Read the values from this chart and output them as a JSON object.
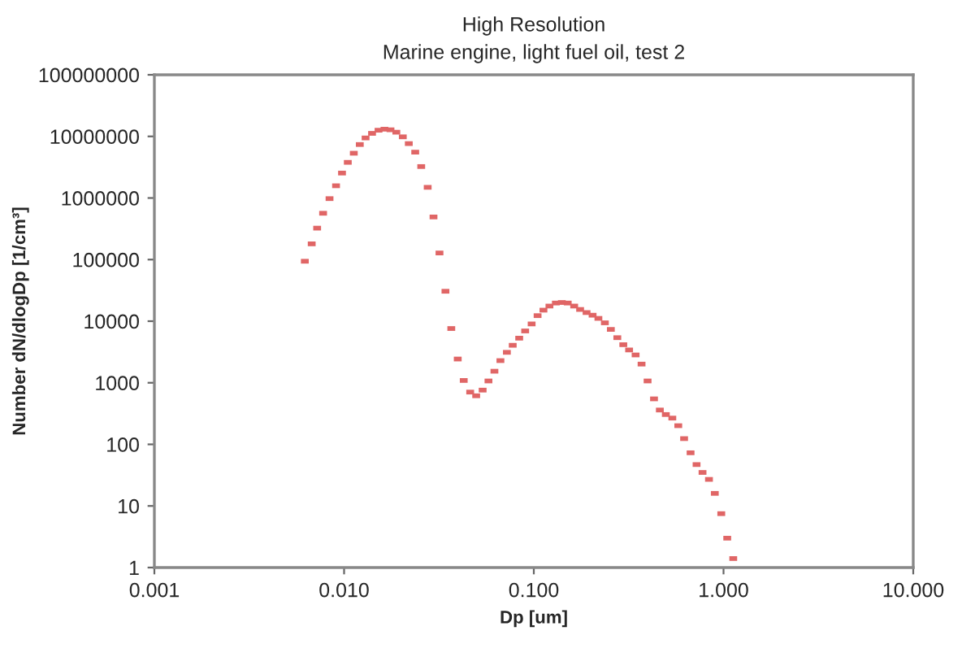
{
  "chart_data": {
    "type": "scatter",
    "title": "High Resolution",
    "subtitle": "Marine engine, light fuel oil, test 2",
    "xlabel": "Dp [um]",
    "ylabel": "Number dN/dlogDp [1/cm³]",
    "log": "xy",
    "grid": false,
    "legend": false,
    "xlim": [
      0.001,
      10
    ],
    "xticks": [
      0.001,
      {
        "value": 0.01,
        "label": "0.010"
      },
      {
        "value": 0.1,
        "label": "0.100"
      },
      {
        "value": 1,
        "label": "1.000"
      },
      {
        "value": 10,
        "label": "10.000"
      }
    ],
    "ylim": [
      1,
      100000000
    ],
    "yticks": [
      1,
      10,
      100,
      1000,
      10000,
      100000,
      1000000,
      10000000,
      100000000
    ],
    "series": [
      {
        "color": "#e06666",
        "x": [
          0.00621,
          0.00675,
          0.00721,
          0.00775,
          0.00838,
          0.00907,
          0.00975,
          0.01046,
          0.01125,
          0.0121,
          0.01298,
          0.01404,
          0.01519,
          0.01633,
          0.01756,
          0.01885,
          0.02039,
          0.02193,
          0.02371,
          0.0255,
          0.02758,
          0.0296,
          0.03183,
          0.03422,
          0.03673,
          0.03972,
          0.04272,
          0.0462,
          0.04969,
          0.05374,
          0.05768,
          0.062,
          0.06668,
          0.07212,
          0.07742,
          0.08375,
          0.09004,
          0.09739,
          0.1047,
          0.1124,
          0.1209,
          0.1307,
          0.1405,
          0.1509,
          0.1632,
          0.1754,
          0.1897,
          0.2041,
          0.219,
          0.2369,
          0.2547,
          0.2755,
          0.2963,
          0.3179,
          0.344,
          0.3698,
          0.3978,
          0.4301,
          0.4617,
          0.4965,
          0.5371,
          0.5773,
          0.6197,
          0.6703,
          0.7209,
          0.775,
          0.8381,
          0.8995,
          0.973,
          1.046,
          1.125
        ],
        "values": [
          94000,
          180000,
          324000,
          565000,
          977000,
          1580000,
          2540000,
          3790000,
          5330000,
          7380000,
          9440000,
          11200000,
          12600000,
          13100000,
          12800000,
          11700000,
          9840000,
          7640000,
          5550000,
          3240000,
          1490000,
          492000,
          128000,
          30600,
          7600,
          2430,
          1090,
          706,
          615,
          760,
          1070,
          1540,
          2290,
          3120,
          4060,
          5300,
          6940,
          9020,
          12300,
          15100,
          17600,
          19700,
          20100,
          19700,
          17600,
          15500,
          13800,
          12500,
          11100,
          9400,
          7350,
          5400,
          4150,
          3410,
          2830,
          2010,
          1070,
          548,
          361,
          305,
          267,
          201,
          124,
          73,
          47,
          35,
          27,
          16,
          7.5,
          3.0,
          1.4
        ]
      }
    ]
  }
}
